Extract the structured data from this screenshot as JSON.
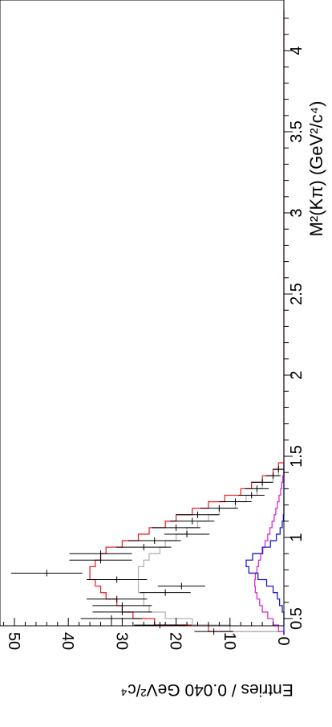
{
  "chart_data": {
    "type": "histogram",
    "orientation": "rotated-90-clockwise",
    "xlabel": "M²(Kπ) (GeV²/c⁴)",
    "ylabel": "Entries / 0.040 GeV²/c⁴",
    "xlim": [
      0.4,
      4.25
    ],
    "ylim": [
      0,
      53
    ],
    "x_ticks": [
      "0.5",
      "1",
      "1.5",
      "2",
      "2.5",
      "3",
      "3.5",
      "4"
    ],
    "y_ticks": [
      "0",
      "10",
      "20",
      "30",
      "40",
      "50"
    ],
    "bin_width": 0.04,
    "data_points": [
      {
        "x": 0.42,
        "y": 13,
        "err": 3.6
      },
      {
        "x": 0.46,
        "y": 23,
        "err": 4.8
      },
      {
        "x": 0.5,
        "y": 32,
        "err": 5.7
      },
      {
        "x": 0.54,
        "y": 30,
        "err": 5.5
      },
      {
        "x": 0.58,
        "y": 30,
        "err": 5.5
      },
      {
        "x": 0.62,
        "y": 31,
        "err": 5.6
      },
      {
        "x": 0.66,
        "y": 22,
        "err": 4.7
      },
      {
        "x": 0.7,
        "y": 19,
        "err": 4.4
      },
      {
        "x": 0.74,
        "y": 31,
        "err": 5.6
      },
      {
        "x": 0.78,
        "y": 44,
        "err": 6.6
      },
      {
        "x": 0.86,
        "y": 34,
        "err": 5.8
      },
      {
        "x": 0.9,
        "y": 34,
        "err": 5.8
      },
      {
        "x": 0.94,
        "y": 26,
        "err": 5.1
      },
      {
        "x": 0.98,
        "y": 24,
        "err": 4.9
      },
      {
        "x": 1.02,
        "y": 18,
        "err": 4.2
      },
      {
        "x": 1.06,
        "y": 20,
        "err": 4.5
      },
      {
        "x": 1.1,
        "y": 17,
        "err": 4.1
      },
      {
        "x": 1.14,
        "y": 16,
        "err": 4.0
      },
      {
        "x": 1.18,
        "y": 12,
        "err": 3.5
      },
      {
        "x": 1.22,
        "y": 9,
        "err": 3.0
      },
      {
        "x": 1.26,
        "y": 6,
        "err": 2.4
      },
      {
        "x": 1.3,
        "y": 5,
        "err": 2.2
      },
      {
        "x": 1.34,
        "y": 4,
        "err": 2.0
      },
      {
        "x": 1.38,
        "y": 2,
        "err": 1.4
      },
      {
        "x": 1.42,
        "y": 1,
        "err": 1.0
      }
    ],
    "series": [
      {
        "color": "#e8282b",
        "edges": [
          0.4,
          0.42,
          0.46,
          0.5,
          0.54,
          0.58,
          0.62,
          0.66,
          0.7,
          0.74,
          0.78,
          0.82,
          0.86,
          0.9,
          0.94,
          0.98,
          1.02,
          1.06,
          1.1,
          1.14,
          1.18,
          1.22,
          1.26,
          1.3,
          1.34,
          1.38,
          1.42,
          1.46,
          4.25
        ],
        "values": [
          0,
          14,
          24,
          28,
          30,
          31,
          33,
          34,
          35,
          36,
          36,
          35,
          34,
          33,
          30,
          27,
          25,
          22,
          20,
          17,
          14,
          11,
          8,
          6,
          4,
          2,
          1,
          0
        ]
      },
      {
        "color": "#b4b4b4",
        "edges": [
          0.4,
          0.42,
          0.46,
          0.5,
          0.54,
          0.58,
          0.62,
          0.66,
          0.7,
          0.74,
          0.78,
          0.82,
          0.86,
          0.9,
          0.94,
          0.98,
          1.02,
          1.06,
          1.1,
          1.14,
          1.18,
          1.22,
          1.26,
          1.3,
          1.34,
          1.38,
          1.42,
          1.46
        ],
        "values": [
          0,
          10,
          17,
          22,
          25,
          26,
          26,
          27,
          27,
          27,
          27,
          26,
          25,
          23,
          22,
          20,
          18,
          16,
          14,
          12,
          9,
          7,
          5,
          4,
          2,
          1,
          0
        ]
      },
      {
        "color": "#d82bd8",
        "edges": [
          0.4,
          0.42,
          0.46,
          0.5,
          0.54,
          0.58,
          0.62,
          0.66,
          0.7,
          0.74,
          0.78,
          0.82,
          0.86,
          0.9,
          0.94,
          0.98,
          1.02,
          1.06,
          1.1,
          1.14,
          1.18,
          1.22,
          1.26,
          1.3,
          1.34,
          1.38,
          1.42
        ],
        "values": [
          0,
          1,
          2,
          3,
          4,
          4.5,
          5,
          5.3,
          5.4,
          5.3,
          5,
          4.7,
          4.3,
          3.9,
          3.5,
          3.0,
          2.6,
          2.2,
          1.8,
          1.5,
          1.2,
          0.9,
          0.6,
          0.4,
          0.2,
          0
        ]
      },
      {
        "color": "#1a1ad8",
        "edges": [
          0.4,
          0.54,
          0.58,
          0.62,
          0.66,
          0.7,
          0.74,
          0.78,
          0.82,
          0.86,
          0.9,
          0.94,
          0.98,
          1.02,
          1.06,
          1.1,
          1.14,
          1.46
        ],
        "values": [
          0,
          0.3,
          0.8,
          1.2,
          2.0,
          3.2,
          4.8,
          6.5,
          7.0,
          5.8,
          4.0,
          2.5,
          1.4,
          0.7,
          0.3,
          0.1,
          0
        ]
      }
    ]
  }
}
